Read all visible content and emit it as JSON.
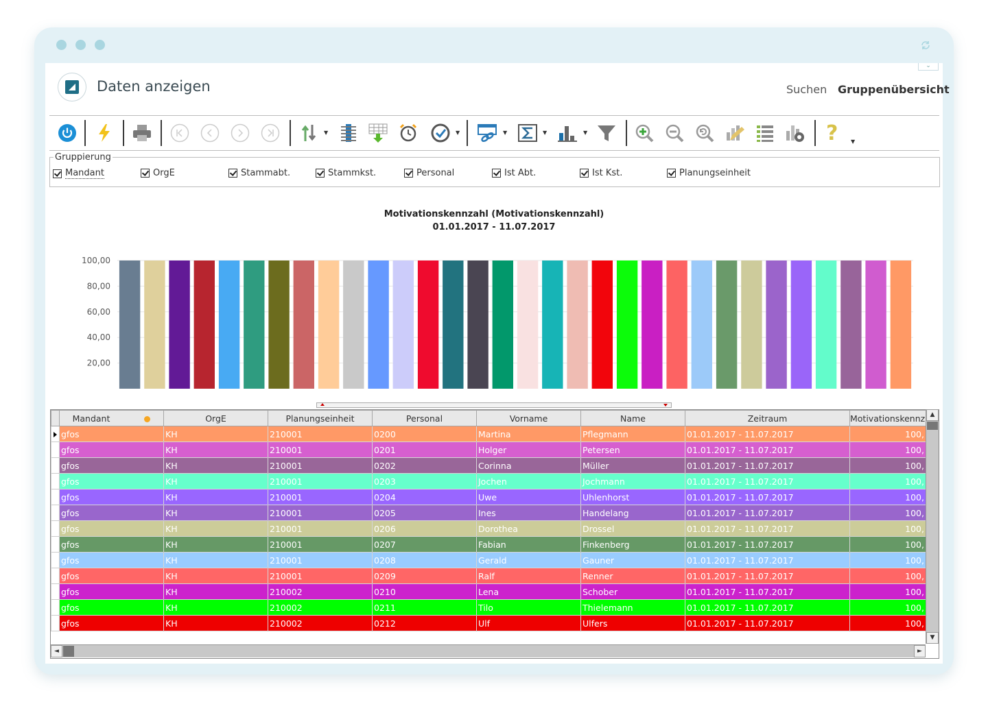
{
  "window": {
    "title": "Daten anzeigen"
  },
  "nav": {
    "search": "Suchen",
    "group_overview": "Gruppenübersicht"
  },
  "toolbar": {
    "icons": [
      "power-icon",
      "lightning-icon",
      "print-icon",
      "first-icon",
      "prev-icon",
      "next-icon",
      "last-icon",
      "sort-icon",
      "columns-icon",
      "export-grid-icon",
      "alarm-icon",
      "clock-icon",
      "link-icon",
      "sum-icon",
      "chart-icon",
      "filter-icon",
      "zoom-in-icon",
      "zoom-out-icon",
      "zoom-reset-icon",
      "edit-chart-icon",
      "list-icon",
      "settings-icon",
      "help-icon"
    ]
  },
  "grouping": {
    "legend": "Gruppierung",
    "options": [
      {
        "label": "Mandant",
        "checked": true
      },
      {
        "label": "OrgE",
        "checked": true
      },
      {
        "label": "Stammabt.",
        "checked": true
      },
      {
        "label": "Stammkst.",
        "checked": true
      },
      {
        "label": "Personal",
        "checked": true
      },
      {
        "label": "Ist Abt.",
        "checked": true
      },
      {
        "label": "Ist Kst.",
        "checked": true
      },
      {
        "label": "Planungseinheit",
        "checked": true
      }
    ]
  },
  "chart_data": {
    "type": "bar",
    "title": "Motivationskennzahl (Motivationskennzahl)",
    "subtitle": "01.01.2017 - 11.07.2017",
    "yticks": [
      "20,00",
      "40,00",
      "60,00",
      "80,00",
      "100,00"
    ],
    "ylim": [
      0,
      100
    ],
    "grid": true,
    "values": [
      100,
      100,
      100,
      100,
      100,
      100,
      100,
      100,
      100,
      100,
      100,
      100,
      100,
      100,
      100,
      100,
      100,
      100,
      100,
      100,
      100,
      100,
      100,
      100,
      100,
      100,
      100,
      100,
      100,
      100,
      100,
      100
    ],
    "colors": [
      "#697d91",
      "#dfd09c",
      "#621a96",
      "#b7252f",
      "#48aaf3",
      "#2f9c80",
      "#6c6c1e",
      "#cb6566",
      "#ffcc99",
      "#c9c9c9",
      "#6699ff",
      "#ccccfa",
      "#ef0b2e",
      "#22737f",
      "#4a4552",
      "#02986b",
      "#f9e1e1",
      "#17b4b6",
      "#efbcb3",
      "#f2050c",
      "#0cfc0a",
      "#c91fc3",
      "#fd6363",
      "#9ccaf9",
      "#6a9a6a",
      "#cdcb9b",
      "#9b64cb",
      "#9a65f9",
      "#63fccb",
      "#98649a",
      "#d05ccf",
      "#ff9965"
    ]
  },
  "table": {
    "columns": [
      "Mandant",
      "OrgE",
      "Planungseinheit",
      "Personal",
      "Vorname",
      "Name",
      "Zeitraum",
      "Motivationskennz"
    ],
    "rows": [
      {
        "color": "#ff9966",
        "cells": [
          "gfos",
          "KH",
          "210001",
          "0200",
          "Martina",
          "Pflegmann",
          "01.01.2017 - 11.07.2017",
          "100,"
        ]
      },
      {
        "color": "#d65fcf",
        "cells": [
          "gfos",
          "KH",
          "210001",
          "0201",
          "Holger",
          "Petersen",
          "01.01.2017 - 11.07.2017",
          "100,"
        ]
      },
      {
        "color": "#996699",
        "cells": [
          "gfos",
          "KH",
          "210001",
          "0202",
          "Corinna",
          "Müller",
          "01.01.2017 - 11.07.2017",
          "100,"
        ]
      },
      {
        "color": "#66ffcc",
        "cells": [
          "gfos",
          "KH",
          "210001",
          "0203",
          "Jochen",
          "Jochmann",
          "01.01.2017 - 11.07.2017",
          "100,"
        ]
      },
      {
        "color": "#9966ff",
        "cells": [
          "gfos",
          "KH",
          "210001",
          "0204",
          "Uwe",
          "Uhlenhorst",
          "01.01.2017 - 11.07.2017",
          "100,"
        ]
      },
      {
        "color": "#9966cc",
        "cells": [
          "gfos",
          "KH",
          "210001",
          "0205",
          "Ines",
          "Handelang",
          "01.01.2017 - 11.07.2017",
          "100,"
        ]
      },
      {
        "color": "#cccc99",
        "cells": [
          "gfos",
          "KH",
          "210001",
          "0206",
          "Dorothea",
          "Drossel",
          "01.01.2017 - 11.07.2017",
          "100,"
        ]
      },
      {
        "color": "#669966",
        "cells": [
          "gfos",
          "KH",
          "210001",
          "0207",
          "Fabian",
          "Finkenberg",
          "01.01.2017 - 11.07.2017",
          "100,"
        ]
      },
      {
        "color": "#99ccff",
        "cells": [
          "gfos",
          "KH",
          "210001",
          "0208",
          "Gerald",
          "Gauner",
          "01.01.2017 - 11.07.2017",
          "100,"
        ]
      },
      {
        "color": "#ff6666",
        "cells": [
          "gfos",
          "KH",
          "210001",
          "0209",
          "Ralf",
          "Renner",
          "01.01.2017 - 11.07.2017",
          "100,"
        ]
      },
      {
        "color": "#cc22cc",
        "cells": [
          "gfos",
          "KH",
          "210002",
          "0210",
          "Lena",
          "Schober",
          "01.01.2017 - 11.07.2017",
          "100,"
        ]
      },
      {
        "color": "#00ff00",
        "cells": [
          "gfos",
          "KH",
          "210002",
          "0211",
          "Tilo",
          "Thielemann",
          "01.01.2017 - 11.07.2017",
          "100,"
        ]
      },
      {
        "color": "#ee0000",
        "cells": [
          "gfos",
          "KH",
          "210002",
          "0212",
          "Ulf",
          "Ulfers",
          "01.01.2017 - 11.07.2017",
          "100,"
        ]
      }
    ]
  }
}
